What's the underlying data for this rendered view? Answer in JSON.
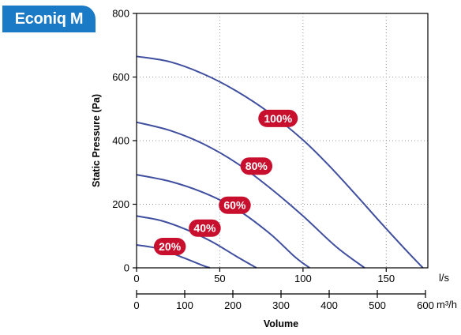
{
  "badge": {
    "label": "Econiq M",
    "color": "#1b7ac5"
  },
  "chart_data": {
    "type": "line",
    "title": "",
    "xlabel": "Volume",
    "ylabel": "Static Pressure (Pa)",
    "x_unit": "l/s",
    "x2_unit": "m³/h",
    "xlim": [
      0,
      175
    ],
    "ylim": [
      0,
      800
    ],
    "x_ticks": [
      0,
      50,
      100,
      150
    ],
    "x2_ticks": [
      0,
      100,
      200,
      300,
      400,
      500,
      600
    ],
    "y_ticks": [
      0,
      200,
      400,
      600,
      800
    ],
    "grid": true,
    "line_color": "#3f4e9e",
    "label_color": "#c8102e",
    "series": [
      {
        "name": "100%",
        "x": [
          0,
          20,
          40,
          60,
          80,
          100,
          115,
          130,
          145,
          160,
          172
        ],
        "y": [
          665,
          648,
          610,
          556,
          487,
          402,
          325,
          240,
          152,
          66,
          0
        ],
        "label_at": [
          85,
          470
        ]
      },
      {
        "name": "80%",
        "x": [
          0,
          20,
          40,
          60,
          80,
          100,
          120,
          137
        ],
        "y": [
          458,
          432,
          390,
          330,
          252,
          163,
          66,
          0
        ],
        "label_at": [
          72,
          320
        ]
      },
      {
        "name": "60%",
        "x": [
          0,
          20,
          40,
          60,
          80,
          95,
          104
        ],
        "y": [
          293,
          272,
          237,
          185,
          108,
          35,
          0
        ],
        "label_at": [
          59,
          197
        ]
      },
      {
        "name": "40%",
        "x": [
          0,
          15,
          30,
          45,
          60,
          72
        ],
        "y": [
          163,
          148,
          120,
          83,
          36,
          0
        ],
        "label_at": [
          41,
          125
        ]
      },
      {
        "name": "20%",
        "x": [
          0,
          10,
          20,
          30,
          40,
          44
        ],
        "y": [
          72,
          64,
          48,
          28,
          7,
          0
        ],
        "label_at": [
          20,
          67
        ]
      }
    ]
  }
}
